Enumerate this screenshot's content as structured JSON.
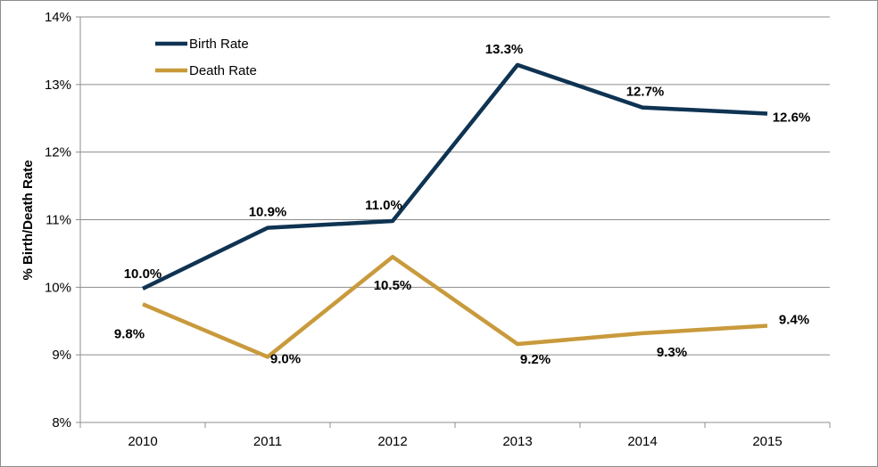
{
  "chart_data": {
    "type": "line",
    "title": "",
    "xlabel": "",
    "ylabel": "% Birth/Death Rate",
    "ylim": [
      8,
      14
    ],
    "y_tick_step": 1,
    "y_tick_labels": [
      "8%",
      "9%",
      "10%",
      "11%",
      "12%",
      "13%",
      "14%"
    ],
    "categories": [
      "2010",
      "2011",
      "2012",
      "2013",
      "2014",
      "2015"
    ],
    "grid": "horizontal",
    "legend_position": "top-left",
    "series": [
      {
        "name": "Birth Rate",
        "color": "#0f3352",
        "values": [
          9.98,
          10.88,
          10.98,
          13.29,
          12.66,
          12.57
        ],
        "labels": [
          "10.0%",
          "10.9%",
          "11.0%",
          "13.3%",
          "12.7%",
          "12.6%"
        ]
      },
      {
        "name": "Death Rate",
        "color": "#c99a3c",
        "values": [
          9.75,
          8.97,
          10.45,
          9.16,
          9.32,
          9.43
        ],
        "labels": [
          "9.8%",
          "9.0%",
          "10.5%",
          "9.2%",
          "9.3%",
          "9.4%"
        ]
      }
    ]
  }
}
